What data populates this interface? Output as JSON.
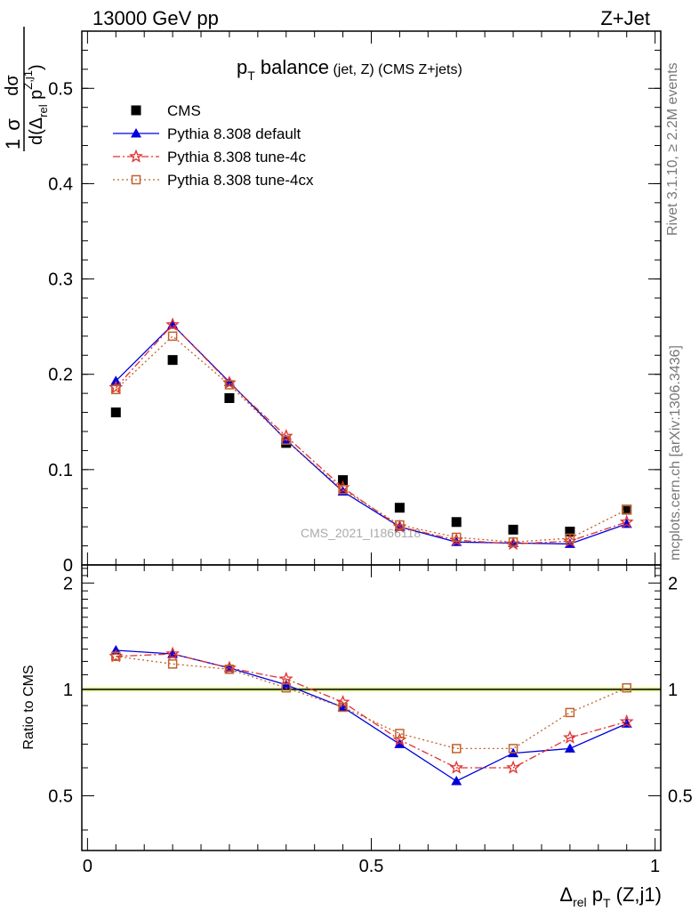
{
  "header": {
    "left": "13000 GeV pp",
    "right": "Z+Jet"
  },
  "side_labels": {
    "rivet": "Rivet 3.1.10, ≥ 2.2M events",
    "mcplots": "mcplots.cern.ch [arXiv:1306.3436]"
  },
  "chart_data": [
    {
      "type": "scatter",
      "title_main": "p",
      "title_sub": "T",
      "title_main2": " balance",
      "title_small": " (jet, Z) (CMS Z+jets)",
      "watermark": "CMS_2021_I1866118",
      "ylabel": {
        "one": "1",
        "sigma": "σ",
        "dsigma": "dσ",
        "d": "d(Δ",
        "rel": "rel",
        "p": " p",
        "T": "T",
        "zj": "Z,j1",
        "close": ")"
      },
      "xlim": [
        -0.01,
        1.01
      ],
      "ylim": [
        0,
        0.56
      ],
      "y_ticks": [
        0,
        0.1,
        0.2,
        0.3,
        0.4,
        0.5
      ],
      "y_tick_labels": [
        "0",
        "0.1",
        "0.2",
        "0.3",
        "0.4",
        "0.5"
      ],
      "legend_position": "top-left",
      "x": [
        0.05,
        0.15,
        0.25,
        0.35,
        0.45,
        0.55,
        0.65,
        0.75,
        0.85,
        0.95
      ],
      "series": [
        {
          "name": "CMS",
          "color": "#000000",
          "marker": "square",
          "values": [
            0.16,
            0.215,
            0.175,
            0.128,
            0.089,
            0.06,
            0.045,
            0.037,
            0.035,
            0.058
          ]
        },
        {
          "name": "Pythia 8.308 default",
          "color": "#0000dd",
          "marker": "triangle",
          "dash": "",
          "values": [
            0.193,
            0.252,
            0.192,
            0.131,
            0.077,
            0.04,
            0.024,
            0.023,
            0.022,
            0.043
          ]
        },
        {
          "name": "Pythia 8.308 tune-4c",
          "color": "#e03030",
          "marker": "star",
          "dash": "8,3,2,3",
          "values": [
            0.186,
            0.252,
            0.191,
            0.135,
            0.081,
            0.04,
            0.026,
            0.022,
            0.025,
            0.045
          ]
        },
        {
          "name": "Pythia 8.308 tune-4cx",
          "color": "#c0622a",
          "marker": "open-square",
          "dash": "2,3",
          "values": [
            0.184,
            0.24,
            0.189,
            0.131,
            0.079,
            0.042,
            0.029,
            0.024,
            0.028,
            0.058
          ]
        }
      ]
    },
    {
      "type": "scatter",
      "ylabel": "Ratio to CMS",
      "xlabel": {
        "delta": "Δ",
        "rel": "rel",
        "p": " p",
        "T": "T",
        "rest": " (Z,j1)"
      },
      "xlim": [
        -0.01,
        1.01
      ],
      "ylim": [
        0.35,
        2.25
      ],
      "x_ticks": [
        0,
        0.5,
        1
      ],
      "x_tick_labels": [
        "0",
        "0.5",
        "1"
      ],
      "y_ticks": [
        0.5,
        1,
        2
      ],
      "y_tick_labels": [
        "0.5",
        "1",
        "2"
      ],
      "reference_line": 1,
      "band": [
        0.985,
        1.015
      ],
      "x": [
        0.05,
        0.15,
        0.25,
        0.35,
        0.45,
        0.55,
        0.65,
        0.75,
        0.85,
        0.95
      ],
      "series": [
        {
          "name": "Pythia 8.308 default",
          "color": "#0000dd",
          "marker": "triangle",
          "dash": "",
          "values": [
            1.29,
            1.26,
            1.15,
            1.03,
            0.89,
            0.7,
            0.55,
            0.66,
            0.68,
            0.8
          ]
        },
        {
          "name": "Pythia 8.308 tune-4c",
          "color": "#e03030",
          "marker": "star",
          "dash": "8,3,2,3",
          "values": [
            1.24,
            1.26,
            1.15,
            1.07,
            0.92,
            0.72,
            0.6,
            0.6,
            0.73,
            0.81
          ]
        },
        {
          "name": "Pythia 8.308 tune-4cx",
          "color": "#c0622a",
          "marker": "open-square",
          "dash": "2,3",
          "values": [
            1.24,
            1.18,
            1.14,
            1.01,
            0.89,
            0.75,
            0.68,
            0.68,
            0.86,
            1.01
          ]
        }
      ]
    }
  ]
}
